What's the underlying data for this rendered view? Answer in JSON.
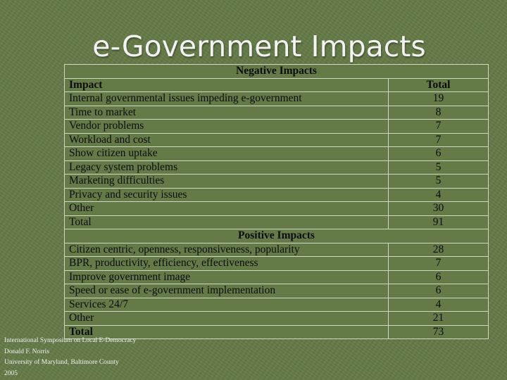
{
  "slide": {
    "title": "e-Government Impacts"
  },
  "table": {
    "negative": {
      "heading": "Negative Impacts",
      "col_impact": "Impact",
      "col_total": "Total",
      "rows": [
        {
          "label": "Internal governmental issues impeding e-government",
          "total": "19"
        },
        {
          "label": "Time to market",
          "total": "8"
        },
        {
          "label": "Vendor problems",
          "total": "7"
        },
        {
          "label": "Workload and cost",
          "total": "7"
        },
        {
          "label": "Show citizen uptake",
          "total": "6"
        },
        {
          "label": "Legacy system problems",
          "total": "5"
        },
        {
          "label": "Marketing difficulties",
          "total": "5"
        },
        {
          "label": "Privacy and security issues",
          "total": "4"
        },
        {
          "label": "Other",
          "total": "30"
        },
        {
          "label": "Total",
          "total": "91"
        }
      ]
    },
    "positive": {
      "heading": "Positive Impacts",
      "rows": [
        {
          "label": "Citizen centric, openness, responsiveness, popularity",
          "total": "28"
        },
        {
          "label": "BPR, productivity, efficiency, effectiveness",
          "total": "7"
        },
        {
          "label": "Improve government image",
          "total": "6"
        },
        {
          "label": "Speed or ease of e-government implementation",
          "total": "6"
        },
        {
          "label": "Services 24/7",
          "total": "4"
        },
        {
          "label": "Other",
          "total": "21"
        },
        {
          "label": "Total",
          "total": "73"
        }
      ]
    }
  },
  "footer": {
    "line1": "International Symposium on Local E-Democracy",
    "line2": "Donald F. Norris",
    "line3": "University of Maryland, Baltimore County",
    "line4": "2005"
  }
}
